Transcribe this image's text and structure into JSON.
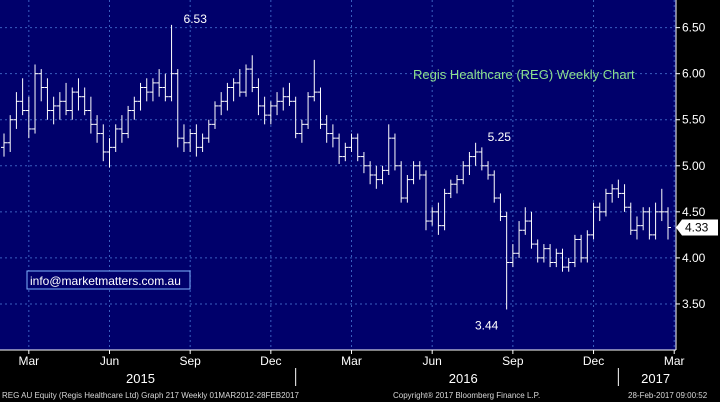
{
  "colors": {
    "background": "#00006b",
    "grid": "#3a5fbf",
    "bars": "#ffffff",
    "title": "#8de08d",
    "email_border": "#7fb3ff"
  },
  "chart_data": {
    "type": "ohlc",
    "title": "Regis Healthcare (REG) Weekly Chart",
    "ylim": [
      3.0,
      6.8
    ],
    "yticks": [
      "6.50",
      "6.00",
      "5.50",
      "5.00",
      "4.50",
      "4.00",
      "3.50"
    ],
    "ytick_values": [
      6.5,
      6.0,
      5.5,
      5.0,
      4.5,
      4.0,
      3.5
    ],
    "x_month_labels": [
      "Mar",
      "Jun",
      "Sep",
      "Dec",
      "Mar",
      "Jun",
      "Sep",
      "Dec",
      "Mar"
    ],
    "x_month_week_index": [
      4,
      17,
      30,
      43,
      56,
      69,
      82,
      95,
      108
    ],
    "x_years": [
      "2015",
      "2016",
      "2017"
    ],
    "x_year_week_index": [
      22,
      74,
      105
    ],
    "x_year_separators_week_index": [
      47,
      99
    ],
    "annotations": [
      {
        "label": "6.53",
        "week": 27,
        "value": 6.53
      },
      {
        "label": "5.25",
        "week": 76,
        "value": 5.25
      },
      {
        "label": "3.44",
        "week": 81,
        "value": 3.44
      }
    ],
    "last_price": "4.33",
    "last_value": 4.33,
    "weeks": 108,
    "ohlc": [
      [
        5.2,
        5.35,
        5.1,
        5.25
      ],
      [
        5.25,
        5.55,
        5.15,
        5.5
      ],
      [
        5.5,
        5.8,
        5.4,
        5.7
      ],
      [
        5.7,
        5.95,
        5.55,
        5.6
      ],
      [
        5.6,
        5.75,
        5.3,
        5.4
      ],
      [
        5.4,
        6.1,
        5.35,
        6.0
      ],
      [
        6.0,
        6.05,
        5.7,
        5.85
      ],
      [
        5.85,
        5.95,
        5.5,
        5.6
      ],
      [
        5.6,
        5.75,
        5.45,
        5.65
      ],
      [
        5.65,
        5.8,
        5.5,
        5.7
      ],
      [
        5.7,
        5.9,
        5.55,
        5.6
      ],
      [
        5.6,
        5.85,
        5.5,
        5.8
      ],
      [
        5.8,
        5.95,
        5.6,
        5.75
      ],
      [
        5.75,
        5.85,
        5.55,
        5.6
      ],
      [
        5.6,
        5.75,
        5.35,
        5.45
      ],
      [
        5.45,
        5.55,
        5.25,
        5.35
      ],
      [
        5.35,
        5.45,
        5.05,
        5.15
      ],
      [
        5.15,
        5.3,
        4.98,
        5.2
      ],
      [
        5.2,
        5.45,
        5.15,
        5.4
      ],
      [
        5.4,
        5.55,
        5.25,
        5.35
      ],
      [
        5.35,
        5.65,
        5.3,
        5.6
      ],
      [
        5.6,
        5.75,
        5.5,
        5.7
      ],
      [
        5.7,
        5.9,
        5.6,
        5.85
      ],
      [
        5.85,
        5.95,
        5.7,
        5.8
      ],
      [
        5.8,
        5.95,
        5.7,
        5.9
      ],
      [
        5.9,
        6.05,
        5.75,
        5.85
      ],
      [
        5.85,
        6.0,
        5.7,
        5.75
      ],
      [
        5.75,
        6.53,
        5.7,
        6.0
      ],
      [
        6.0,
        6.05,
        5.2,
        5.3
      ],
      [
        5.3,
        5.45,
        5.15,
        5.25
      ],
      [
        5.25,
        5.4,
        5.15,
        5.35
      ],
      [
        5.35,
        5.45,
        5.1,
        5.2
      ],
      [
        5.2,
        5.35,
        5.15,
        5.3
      ],
      [
        5.3,
        5.5,
        5.25,
        5.45
      ],
      [
        5.45,
        5.7,
        5.4,
        5.65
      ],
      [
        5.65,
        5.8,
        5.55,
        5.7
      ],
      [
        5.7,
        5.9,
        5.6,
        5.85
      ],
      [
        5.85,
        5.95,
        5.7,
        5.9
      ],
      [
        5.9,
        6.05,
        5.75,
        5.8
      ],
      [
        5.8,
        6.1,
        5.75,
        6.05
      ],
      [
        6.05,
        6.2,
        5.8,
        5.85
      ],
      [
        5.85,
        5.95,
        5.55,
        5.65
      ],
      [
        5.65,
        5.75,
        5.45,
        5.55
      ],
      [
        5.55,
        5.7,
        5.45,
        5.65
      ],
      [
        5.65,
        5.8,
        5.55,
        5.7
      ],
      [
        5.7,
        5.85,
        5.6,
        5.75
      ],
      [
        5.75,
        5.9,
        5.65,
        5.7
      ],
      [
        5.7,
        5.75,
        5.3,
        5.35
      ],
      [
        5.35,
        5.5,
        5.25,
        5.45
      ],
      [
        5.45,
        5.8,
        5.4,
        5.75
      ],
      [
        5.75,
        6.15,
        5.7,
        5.8
      ],
      [
        5.8,
        5.85,
        5.4,
        5.45
      ],
      [
        5.45,
        5.55,
        5.25,
        5.35
      ],
      [
        5.35,
        5.45,
        5.2,
        5.3
      ],
      [
        5.3,
        5.35,
        5.02,
        5.1
      ],
      [
        5.1,
        5.25,
        5.05,
        5.2
      ],
      [
        5.2,
        5.35,
        5.15,
        5.3
      ],
      [
        5.3,
        5.35,
        5.05,
        5.1
      ],
      [
        5.1,
        5.15,
        4.92,
        5.0
      ],
      [
        5.0,
        5.05,
        4.8,
        4.9
      ],
      [
        4.9,
        5.0,
        4.75,
        4.85
      ],
      [
        4.85,
        5.0,
        4.8,
        4.95
      ],
      [
        4.95,
        5.45,
        4.9,
        5.3
      ],
      [
        5.3,
        5.35,
        4.95,
        5.0
      ],
      [
        5.0,
        5.05,
        4.6,
        4.65
      ],
      [
        4.65,
        4.9,
        4.6,
        4.85
      ],
      [
        4.85,
        5.05,
        4.8,
        5.0
      ],
      [
        5.0,
        5.05,
        4.85,
        4.9
      ],
      [
        4.9,
        4.95,
        4.3,
        4.4
      ],
      [
        4.4,
        4.55,
        4.35,
        4.5
      ],
      [
        4.5,
        4.6,
        4.25,
        4.35
      ],
      [
        4.35,
        4.75,
        4.3,
        4.7
      ],
      [
        4.7,
        4.85,
        4.65,
        4.8
      ],
      [
        4.8,
        4.9,
        4.7,
        4.85
      ],
      [
        4.85,
        5.05,
        4.8,
        5.0
      ],
      [
        5.0,
        5.15,
        4.9,
        5.1
      ],
      [
        5.1,
        5.25,
        5.0,
        5.15
      ],
      [
        5.15,
        5.2,
        4.95,
        5.0
      ],
      [
        5.0,
        5.05,
        4.85,
        4.9
      ],
      [
        4.9,
        4.95,
        4.6,
        4.65
      ],
      [
        4.65,
        4.7,
        4.4,
        4.45
      ],
      [
        4.45,
        4.5,
        3.44,
        3.95
      ],
      [
        3.95,
        4.15,
        3.9,
        4.05
      ],
      [
        4.05,
        4.4,
        4.0,
        4.3
      ],
      [
        4.3,
        4.55,
        4.25,
        4.4
      ],
      [
        4.4,
        4.5,
        4.1,
        4.15
      ],
      [
        4.15,
        4.2,
        3.95,
        4.0
      ],
      [
        4.0,
        4.15,
        3.95,
        4.1
      ],
      [
        4.1,
        4.15,
        3.9,
        3.95
      ],
      [
        3.95,
        4.1,
        3.9,
        4.05
      ],
      [
        4.05,
        4.1,
        3.85,
        3.9
      ],
      [
        3.9,
        4.0,
        3.85,
        3.95
      ],
      [
        3.95,
        4.25,
        3.9,
        4.2
      ],
      [
        4.2,
        4.25,
        3.95,
        4.0
      ],
      [
        4.0,
        4.3,
        3.95,
        4.25
      ],
      [
        4.25,
        4.6,
        4.2,
        4.55
      ],
      [
        4.55,
        4.6,
        4.4,
        4.5
      ],
      [
        4.5,
        4.75,
        4.45,
        4.7
      ],
      [
        4.7,
        4.8,
        4.6,
        4.75
      ],
      [
        4.75,
        4.85,
        4.65,
        4.7
      ],
      [
        4.7,
        4.8,
        4.5,
        4.55
      ],
      [
        4.55,
        4.6,
        4.25,
        4.3
      ],
      [
        4.3,
        4.45,
        4.2,
        4.35
      ],
      [
        4.35,
        4.55,
        4.3,
        4.5
      ],
      [
        4.5,
        4.55,
        4.2,
        4.25
      ],
      [
        4.25,
        4.6,
        4.2,
        4.5
      ],
      [
        4.5,
        4.75,
        4.4,
        4.5
      ],
      [
        4.5,
        4.55,
        4.2,
        4.33
      ]
    ]
  },
  "watermark": {
    "email": "info@marketmatters.com.au"
  },
  "footer": {
    "left": "REG AU Equity (Regis Healthcare Ltd) Graph 217  Weekly 01MAR2012-28FEB2017",
    "center": "Copyright® 2017 Bloomberg Finance L.P.",
    "right": "28-Feb-2017 09:00:52"
  }
}
